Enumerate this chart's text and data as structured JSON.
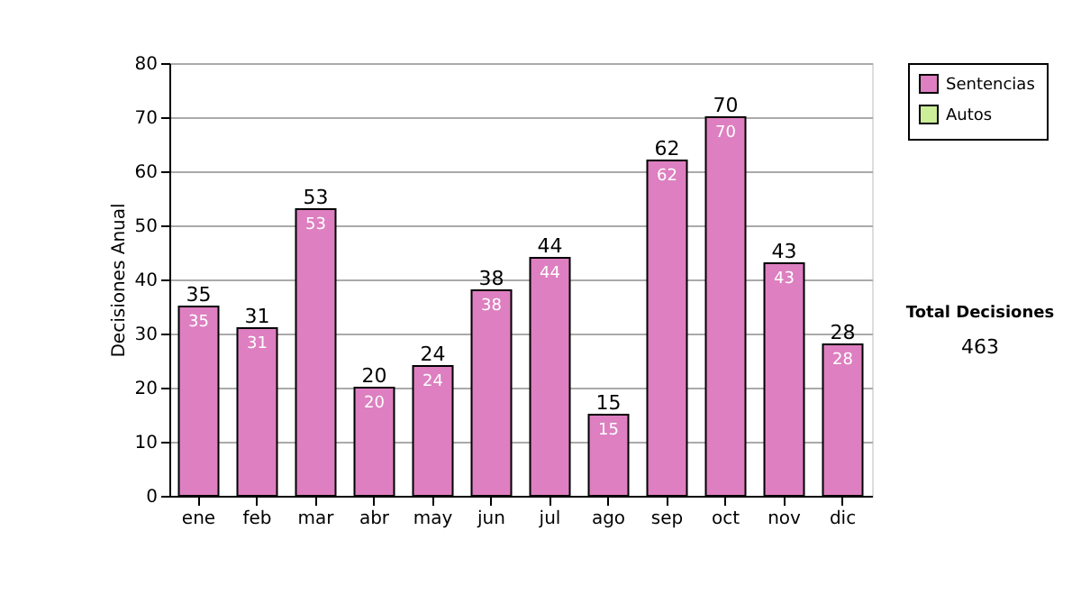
{
  "chart_data": {
    "type": "bar",
    "ylabel": "Decisiones Anual",
    "categories": [
      "ene",
      "feb",
      "mar",
      "abr",
      "may",
      "jun",
      "jul",
      "ago",
      "sep",
      "oct",
      "nov",
      "dic"
    ],
    "series": [
      {
        "name": "Sentencias",
        "color": "#dd7fc0",
        "values": [
          35,
          31,
          53,
          20,
          24,
          38,
          44,
          15,
          62,
          70,
          43,
          28
        ],
        "value_labels": [
          "35",
          "31",
          "53",
          "20",
          "24",
          "38",
          "44",
          "15",
          "62",
          "70",
          "43",
          "28"
        ]
      },
      {
        "name": "Autos",
        "color": "#ccee99",
        "values": [
          0,
          0,
          0,
          0,
          0,
          0,
          0,
          0,
          0,
          0,
          0,
          0
        ]
      }
    ],
    "ylim": [
      0,
      80
    ],
    "yticks": [
      0,
      10,
      20,
      30,
      40,
      50,
      60,
      70,
      80
    ],
    "grid": "y",
    "legend": "right",
    "totals": [
      "35",
      "31",
      "53",
      "20",
      "24",
      "38",
      "44",
      "15",
      "62",
      "70",
      "43",
      "28"
    ],
    "annotations": [
      "Total Decisiones",
      "463"
    ]
  }
}
